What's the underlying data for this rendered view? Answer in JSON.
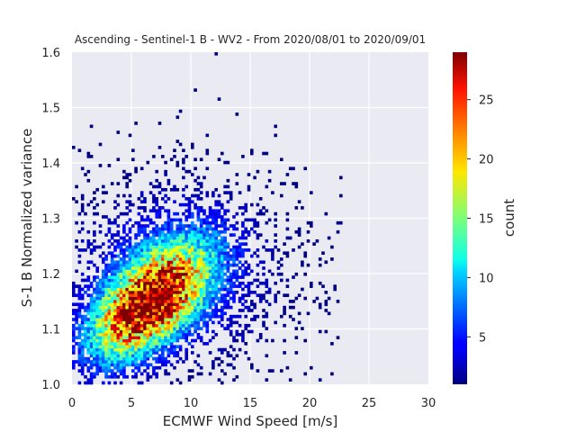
{
  "chart_data": {
    "type": "heatmap",
    "title": "Ascending - Sentinel-1 B - WV2 - From 2020/08/01 to 2020/09/01",
    "xlabel": "ECMWF Wind Speed [m/s]",
    "ylabel": "S-1 B Normalized variance",
    "xlim": [
      0,
      30
    ],
    "ylim": [
      1.0,
      1.6
    ],
    "x_ticks": [
      0,
      5,
      10,
      15,
      20,
      25,
      30
    ],
    "y_ticks": [
      1.0,
      1.1,
      1.2,
      1.3,
      1.4,
      1.5,
      1.6
    ],
    "x_tick_labels": [
      "0",
      "5",
      "10",
      "15",
      "20",
      "25",
      "30"
    ],
    "y_tick_labels": [
      "1.0",
      "1.1",
      "1.2",
      "1.3",
      "1.4",
      "1.5",
      "1.6"
    ],
    "grid": true,
    "colormap": "jet",
    "colorbar": {
      "label": "count",
      "range": [
        1,
        29
      ],
      "ticks": [
        5,
        10,
        15,
        20,
        25
      ],
      "tick_labels": [
        "5",
        "10",
        "15",
        "20",
        "25"
      ]
    },
    "density_peak": {
      "x": 6.5,
      "y": 1.11,
      "count": 29
    },
    "scatter_extent": {
      "x_max": 23,
      "y_max": 1.6
    },
    "colors": {
      "background": "#eaeaf2",
      "grid": "#ffffff"
    }
  }
}
